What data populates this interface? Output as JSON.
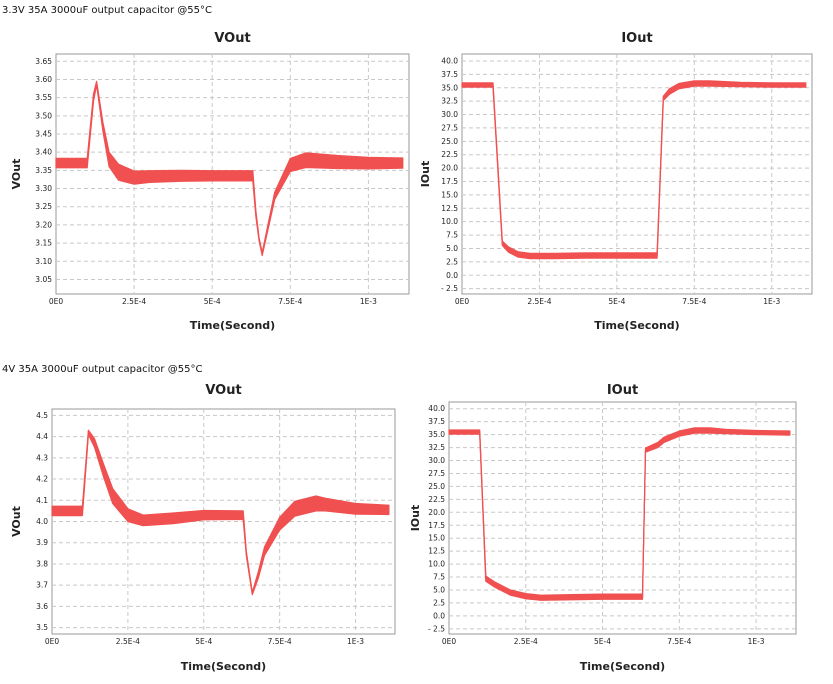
{
  "captions": [
    "3.3V 35A 3000uF output capacitor @55°C",
    "4V 35A 3000uF output capacitor @55°C"
  ],
  "colors": {
    "series": "#f05050",
    "grid": "#c8c8c8",
    "frame": "#999999"
  },
  "chart_data": [
    {
      "type": "line",
      "title": "VOut",
      "xlabel": "Time(Second)",
      "ylabel": "VOut",
      "xlim": [
        0,
        0.00113
      ],
      "ylim": [
        3.01,
        3.67
      ],
      "grid": true,
      "xticks": [
        0,
        0.00025,
        0.0005,
        0.00075,
        0.001
      ],
      "xtick_labels": [
        "0E0",
        "2.5E-4",
        "5E-4",
        "7.5E-4",
        "1E-3"
      ],
      "yticks": [
        3.05,
        3.1,
        3.15,
        3.2,
        3.25,
        3.3,
        3.35,
        3.4,
        3.45,
        3.5,
        3.55,
        3.6,
        3.65
      ],
      "ytick_labels": [
        "3.05",
        "3.10",
        "3.15",
        "3.20",
        "3.25",
        "3.30",
        "3.35",
        "3.40",
        "3.45",
        "3.50",
        "3.55",
        "3.60",
        "3.65"
      ],
      "series": [
        {
          "x": [
            0,
            0.0001,
            0.00012,
            0.00013,
            0.00015,
            0.00017,
            0.0002,
            0.00025,
            0.0003,
            0.0004,
            0.0005,
            0.00063,
            0.00064,
            0.00065,
            0.00066,
            0.0007,
            0.00075,
            0.0008,
            0.0009,
            0.001,
            0.00111
          ],
          "y": [
            3.37,
            3.37,
            3.55,
            3.59,
            3.47,
            3.38,
            3.345,
            3.33,
            3.333,
            3.335,
            3.335,
            3.335,
            3.23,
            3.16,
            3.12,
            3.28,
            3.365,
            3.378,
            3.373,
            3.37,
            3.37
          ],
          "band": [
            0.013,
            0.013,
            0.01,
            0.005,
            0.012,
            0.02,
            0.022,
            0.018,
            0.016,
            0.015,
            0.014,
            0.014,
            0.008,
            0.004,
            0.004,
            0.01,
            0.018,
            0.02,
            0.018,
            0.016,
            0.014
          ]
        }
      ]
    },
    {
      "type": "line",
      "title": "IOut",
      "xlabel": "Time(Second)",
      "ylabel": "IOut",
      "xlim": [
        0,
        0.00113
      ],
      "ylim": [
        -3.5,
        41.3
      ],
      "grid": true,
      "xticks": [
        0,
        0.00025,
        0.0005,
        0.00075,
        0.001
      ],
      "xtick_labels": [
        "0E0",
        "2.5E-4",
        "5E-4",
        "7.5E-4",
        "1E-3"
      ],
      "yticks": [
        -2.5,
        0,
        2.5,
        5,
        7.5,
        10,
        12.5,
        15,
        17.5,
        20,
        22.5,
        25,
        27.5,
        30,
        32.5,
        35,
        37.5,
        40
      ],
      "ytick_labels": [
        "- 2.5",
        "0.0",
        "2.5",
        "5.0",
        "7.5",
        "10.0",
        "12.5",
        "15.0",
        "17.5",
        "20.0",
        "22.5",
        "25.0",
        "27.5",
        "30.0",
        "32.5",
        "35.0",
        "37.5",
        "40.0"
      ],
      "series": [
        {
          "x": [
            0,
            0.0001,
            0.00013,
            0.00015,
            0.00018,
            0.00022,
            0.00025,
            0.0003,
            0.0004,
            0.0005,
            0.00063,
            0.00065,
            0.00067,
            0.0007,
            0.00075,
            0.0008,
            0.0009,
            0.001,
            0.00111
          ],
          "y": [
            35.5,
            35.5,
            6.0,
            4.8,
            3.9,
            3.6,
            3.6,
            3.6,
            3.7,
            3.7,
            3.7,
            33.0,
            34.3,
            35.3,
            35.8,
            35.8,
            35.6,
            35.5,
            35.5
          ],
          "band": [
            0.4,
            0.4,
            0.4,
            0.5,
            0.5,
            0.5,
            0.5,
            0.5,
            0.5,
            0.5,
            0.5,
            0.4,
            0.5,
            0.5,
            0.5,
            0.5,
            0.4,
            0.4,
            0.4
          ]
        }
      ]
    },
    {
      "type": "line",
      "title": "VOut",
      "xlabel": "Time(Second)",
      "ylabel": "VOut",
      "xlim": [
        0,
        0.00113
      ],
      "ylim": [
        3.47,
        4.53
      ],
      "grid": true,
      "xticks": [
        0,
        0.00025,
        0.0005,
        0.00075,
        0.001
      ],
      "xtick_labels": [
        "0E0",
        "2.5E-4",
        "5E-4",
        "7.5E-4",
        "1E-3"
      ],
      "yticks": [
        3.5,
        3.6,
        3.7,
        3.8,
        3.9,
        4.0,
        4.1,
        4.2,
        4.3,
        4.4,
        4.5
      ],
      "ytick_labels": [
        "3.5",
        "3.6",
        "3.7",
        "3.8",
        "3.9",
        "4.0",
        "4.1",
        "4.2",
        "4.3",
        "4.4",
        "4.5"
      ],
      "series": [
        {
          "x": [
            0,
            0.0001,
            0.00012,
            0.00014,
            0.00017,
            0.0002,
            0.00025,
            0.0003,
            0.0004,
            0.0005,
            0.00063,
            0.00064,
            0.00066,
            0.00068,
            0.0007,
            0.00075,
            0.0008,
            0.00087,
            0.0009,
            0.001,
            0.00111
          ],
          "y": [
            4.05,
            4.05,
            4.42,
            4.37,
            4.24,
            4.12,
            4.03,
            4.005,
            4.015,
            4.03,
            4.03,
            3.85,
            3.66,
            3.75,
            3.86,
            3.99,
            4.06,
            4.085,
            4.08,
            4.06,
            4.055
          ],
          "band": [
            0.022,
            0.022,
            0.01,
            0.02,
            0.03,
            0.035,
            0.03,
            0.025,
            0.025,
            0.022,
            0.02,
            0.01,
            0.005,
            0.015,
            0.02,
            0.03,
            0.035,
            0.035,
            0.03,
            0.025,
            0.022
          ]
        }
      ]
    },
    {
      "type": "line",
      "title": "IOut",
      "xlabel": "Time(Second)",
      "ylabel": "IOut",
      "xlim": [
        0,
        0.00113
      ],
      "ylim": [
        -3.5,
        41.3
      ],
      "grid": true,
      "xticks": [
        0,
        0.00025,
        0.0005,
        0.00075,
        0.001
      ],
      "xtick_labels": [
        "0E0",
        "2.5E-4",
        "5E-4",
        "7.5E-4",
        "1E-3"
      ],
      "yticks": [
        -2.5,
        0,
        2.5,
        5,
        7.5,
        10,
        12.5,
        15,
        17.5,
        20,
        22.5,
        25,
        27.5,
        30,
        32.5,
        35,
        37.5,
        40
      ],
      "ytick_labels": [
        "- 2.5",
        "0.0",
        "2.5",
        "5.0",
        "7.5",
        "10.0",
        "12.5",
        "15.0",
        "17.5",
        "20.0",
        "22.5",
        "25.0",
        "27.5",
        "30.0",
        "32.5",
        "35.0",
        "37.5",
        "40.0"
      ],
      "series": [
        {
          "x": [
            0,
            0.0001,
            0.00012,
            0.00015,
            0.0002,
            0.00025,
            0.0003,
            0.0004,
            0.0005,
            0.00063,
            0.00064,
            0.00068,
            0.0007,
            0.00075,
            0.0008,
            0.00085,
            0.0009,
            0.001,
            0.00111
          ],
          "y": [
            35.5,
            35.5,
            7.2,
            6.0,
            4.5,
            3.8,
            3.5,
            3.6,
            3.7,
            3.7,
            32.0,
            33.0,
            34.0,
            35.2,
            35.8,
            35.8,
            35.6,
            35.4,
            35.3
          ],
          "band": [
            0.4,
            0.4,
            0.5,
            0.5,
            0.5,
            0.5,
            0.5,
            0.5,
            0.5,
            0.5,
            0.4,
            0.5,
            0.5,
            0.5,
            0.5,
            0.5,
            0.4,
            0.4,
            0.4
          ]
        }
      ]
    }
  ]
}
